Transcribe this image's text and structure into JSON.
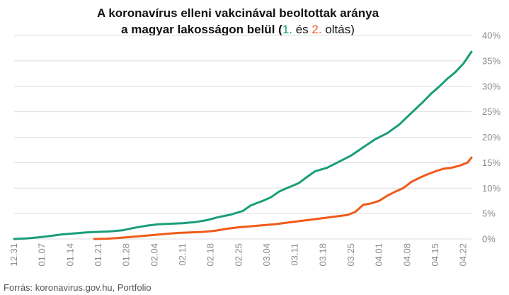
{
  "chart_data": {
    "type": "line",
    "title_line1": "A koronavírus elleni vakcinával beoltottak aránya",
    "title_line2_prefix": "a magyar lakosságon belül (",
    "title_line2_first": "1.",
    "title_line2_mid": " és ",
    "title_line2_second": "2.",
    "title_line2_suffix": " oltás)",
    "source": "Forrás: koronavirus.gov.hu, Portfolio",
    "ylim": [
      0,
      40
    ],
    "y_ticks": [
      0,
      5,
      10,
      15,
      20,
      25,
      30,
      35,
      40
    ],
    "y_tick_labels": [
      "0%",
      "5%",
      "10%",
      "15%",
      "20%",
      "25%",
      "30%",
      "35%",
      "40%"
    ],
    "x_tick_labels": [
      "12.31",
      "01.07",
      "01.14",
      "01.21",
      "01.28",
      "02.04",
      "02.11",
      "02.18",
      "02.25",
      "03.04",
      "03.11",
      "03.18",
      "03.25",
      "04.01",
      "04.08",
      "04.15",
      "04.22"
    ],
    "x_tick_day_index": [
      0,
      7,
      14,
      21,
      28,
      35,
      42,
      49,
      56,
      63,
      70,
      77,
      84,
      91,
      98,
      105,
      112
    ],
    "x_max_day_index": 114,
    "grid": "horizontal",
    "legend": "none",
    "series": [
      {
        "color": "#1a9e7a",
        "points": [
          [
            0,
            0
          ],
          [
            3,
            0.1
          ],
          [
            6,
            0.3
          ],
          [
            9,
            0.6
          ],
          [
            12,
            0.9
          ],
          [
            15,
            1.1
          ],
          [
            18,
            1.3
          ],
          [
            21,
            1.4
          ],
          [
            24,
            1.5
          ],
          [
            27,
            1.7
          ],
          [
            30,
            2.2
          ],
          [
            33,
            2.6
          ],
          [
            36,
            2.9
          ],
          [
            39,
            3.0
          ],
          [
            42,
            3.1
          ],
          [
            45,
            3.3
          ],
          [
            48,
            3.7
          ],
          [
            51,
            4.3
          ],
          [
            54,
            4.8
          ],
          [
            57,
            5.5
          ],
          [
            59,
            6.6
          ],
          [
            62,
            7.5
          ],
          [
            64,
            8.2
          ],
          [
            66,
            9.3
          ],
          [
            68,
            10.0
          ],
          [
            71,
            11.0
          ],
          [
            73,
            12.2
          ],
          [
            75,
            13.3
          ],
          [
            78,
            14.0
          ],
          [
            81,
            15.2
          ],
          [
            84,
            16.4
          ],
          [
            87,
            18.0
          ],
          [
            90,
            19.6
          ],
          [
            93,
            20.8
          ],
          [
            96,
            22.5
          ],
          [
            98,
            24.0
          ],
          [
            100,
            25.5
          ],
          [
            102,
            27.0
          ],
          [
            104,
            28.6
          ],
          [
            106,
            30.0
          ],
          [
            108,
            31.5
          ],
          [
            110,
            32.8
          ],
          [
            112,
            34.5
          ],
          [
            114,
            36.8
          ]
        ]
      },
      {
        "color": "#f05a1a",
        "points": [
          [
            20,
            0
          ],
          [
            23,
            0.05
          ],
          [
            26,
            0.2
          ],
          [
            29,
            0.4
          ],
          [
            32,
            0.6
          ],
          [
            35,
            0.8
          ],
          [
            38,
            1.0
          ],
          [
            41,
            1.2
          ],
          [
            44,
            1.3
          ],
          [
            47,
            1.4
          ],
          [
            50,
            1.6
          ],
          [
            53,
            2.0
          ],
          [
            56,
            2.3
          ],
          [
            59,
            2.5
          ],
          [
            62,
            2.7
          ],
          [
            65,
            2.9
          ],
          [
            68,
            3.2
          ],
          [
            71,
            3.5
          ],
          [
            74,
            3.8
          ],
          [
            77,
            4.1
          ],
          [
            80,
            4.4
          ],
          [
            83,
            4.7
          ],
          [
            85,
            5.3
          ],
          [
            87,
            6.7
          ],
          [
            89,
            7.0
          ],
          [
            91,
            7.5
          ],
          [
            93,
            8.5
          ],
          [
            95,
            9.3
          ],
          [
            97,
            10.0
          ],
          [
            99,
            11.2
          ],
          [
            101,
            12.0
          ],
          [
            103,
            12.7
          ],
          [
            105,
            13.3
          ],
          [
            107,
            13.8
          ],
          [
            109,
            14.0
          ],
          [
            111,
            14.4
          ],
          [
            113,
            15.0
          ],
          [
            114,
            16.0
          ]
        ]
      }
    ]
  }
}
